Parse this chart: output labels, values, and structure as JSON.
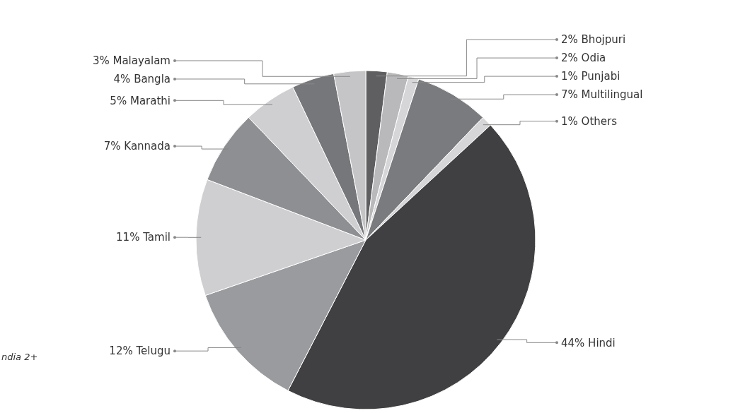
{
  "chart_data": {
    "type": "pie",
    "categories": [
      "Bhojpuri",
      "Odia",
      "Punjabi",
      "Multilingual",
      "Others",
      "Hindi",
      "Telugu",
      "Tamil",
      "Kannada",
      "Marathi",
      "Bangla",
      "Malayalam"
    ],
    "values": [
      2,
      2,
      1,
      7,
      1,
      44,
      12,
      11,
      7,
      5,
      4,
      3
    ],
    "value_labels": [
      "2%",
      "2%",
      "1%",
      "7%",
      "1%",
      "44%",
      "12%",
      "11%",
      "7%",
      "5%",
      "4%",
      "3%"
    ],
    "colors": [
      "#5f5f61",
      "#b9b9bb",
      "#d6d6d8",
      "#7a7b7e",
      "#d6d6d8",
      "#404042",
      "#9a9b9e",
      "#cfcfd1",
      "#8e8f92",
      "#cfcfd1",
      "#76777a",
      "#c5c5c7"
    ],
    "annotations": [
      "ndia 2+"
    ]
  }
}
